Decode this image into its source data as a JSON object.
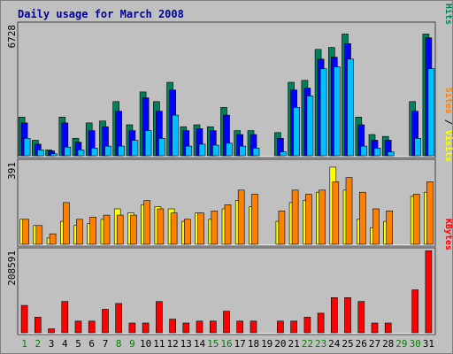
{
  "chart_data": {
    "type": "bar",
    "title": "Daily usage for March 2008",
    "x": [
      "1",
      "2",
      "3",
      "4",
      "5",
      "6",
      "7",
      "8",
      "9",
      "10",
      "11",
      "12",
      "13",
      "14",
      "15",
      "16",
      "17",
      "18",
      "19",
      "20",
      "21",
      "22",
      "23",
      "24",
      "25",
      "26",
      "27",
      "28",
      "29",
      "30",
      "31"
    ],
    "weekend_days": [
      "1",
      "2",
      "8",
      "9",
      "15",
      "16",
      "22",
      "23",
      "29",
      "30"
    ],
    "panels": [
      {
        "max_label": "6728",
        "ymax": 6728,
        "side_labels": [
          "Pages",
          "Files",
          "Hits"
        ],
        "series": [
          {
            "name": "Hits",
            "color": "#00805c",
            "values": [
              2000,
              800,
              300,
              2000,
              900,
              1700,
              1800,
              2800,
              1600,
              3300,
              2800,
              3800,
              1500,
              1600,
              1500,
              2500,
              1300,
              1300,
              0,
              1200,
              3800,
              3900,
              5500,
              5600,
              6300,
              2000,
              1100,
              1000,
              0,
              2800,
              6300
            ]
          },
          {
            "name": "Files",
            "color": "#0000ff",
            "values": [
              1700,
              600,
              250,
              1700,
              700,
              1300,
              1500,
              2300,
              1300,
              3000,
              2300,
              3400,
              1300,
              1400,
              1300,
              2100,
              1100,
              1100,
              0,
              900,
              3400,
              3500,
              5000,
              5100,
              5800,
              1600,
              800,
              800,
              0,
              2300,
              6100
            ]
          },
          {
            "name": "Pages",
            "color": "#00c0ff",
            "values": [
              900,
              300,
              100,
              450,
              300,
              400,
              500,
              500,
              800,
              1300,
              900,
              2100,
              500,
              600,
              550,
              650,
              500,
              400,
              0,
              200,
              2500,
              3100,
              4500,
              4600,
              5000,
              500,
              400,
              200,
              0,
              900,
              4500
            ]
          }
        ]
      },
      {
        "max_label": "391",
        "ymax": 391,
        "side_labels": [
          "Sites",
          "Visits"
        ],
        "series": [
          {
            "name": "Visits",
            "color": "#ffff00",
            "values": [
              120,
              90,
              30,
              110,
              90,
              100,
              120,
              170,
              150,
              190,
              180,
              170,
              110,
              150,
              120,
              170,
              210,
              180,
              0,
              110,
              200,
              210,
              250,
              370,
              260,
              120,
              80,
              110,
              0,
              230,
              250
            ]
          },
          {
            "name": "Sites",
            "color": "#ff8000",
            "values": [
              120,
              90,
              50,
              200,
              120,
              130,
              140,
              140,
              140,
              210,
              170,
              150,
              120,
              150,
              160,
              190,
              260,
              240,
              0,
              160,
              260,
              240,
              260,
              300,
              320,
              250,
              170,
              160,
              0,
              240,
              300
            ]
          }
        ]
      },
      {
        "max_label": "208591",
        "ymax": 208591,
        "side_labels": [
          "KBytes"
        ],
        "series": [
          {
            "name": "KBytes",
            "color": "#ff0000",
            "values": [
              70000,
              40000,
              10000,
              80000,
              30000,
              30000,
              60000,
              75000,
              25000,
              25000,
              80000,
              35000,
              25000,
              30000,
              30000,
              55000,
              30000,
              30000,
              0,
              30000,
              30000,
              40000,
              50000,
              90000,
              90000,
              80000,
              25000,
              25000,
              0,
              110000,
              210000
            ]
          }
        ]
      }
    ]
  }
}
